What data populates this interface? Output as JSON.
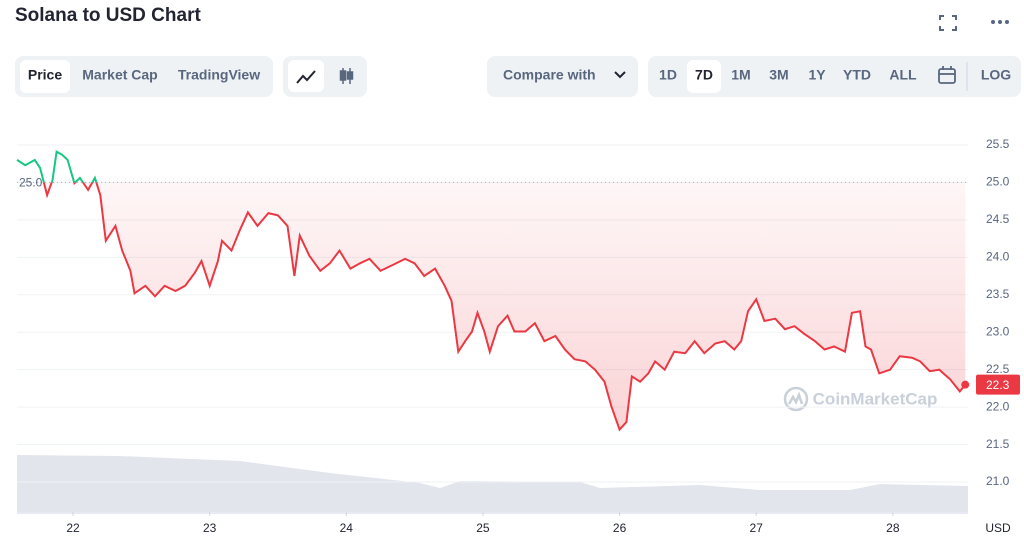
{
  "header": {
    "title": "Solana to USD Chart"
  },
  "toolbar": {
    "tabs": [
      "Price",
      "Market Cap",
      "TradingView"
    ],
    "active_tab": 0,
    "compare": "Compare with",
    "ranges": [
      "1D",
      "7D",
      "1M",
      "3M",
      "1Y",
      "YTD",
      "ALL"
    ],
    "active_range": 1,
    "log": "LOG"
  },
  "chart_data": {
    "type": "line",
    "x": [
      21.59,
      21.65,
      21.72,
      21.76,
      21.81,
      21.85,
      21.88,
      21.92,
      21.96,
      22.01,
      22.05,
      22.11,
      22.16,
      22.2,
      22.24,
      22.31,
      22.36,
      22.42,
      22.45,
      22.53,
      22.6,
      22.67,
      22.75,
      22.82,
      22.89,
      22.94,
      23.0,
      23.06,
      23.09,
      23.16,
      23.22,
      23.28,
      23.35,
      23.43,
      23.5,
      23.57,
      23.62,
      23.66,
      23.73,
      23.81,
      23.88,
      23.95,
      24.03,
      24.1,
      24.17,
      24.25,
      24.33,
      24.43,
      24.5,
      24.57,
      24.65,
      24.72,
      24.77,
      24.82,
      24.87,
      24.92,
      24.96,
      25.01,
      25.05,
      25.11,
      25.18,
      25.23,
      25.31,
      25.38,
      25.45,
      25.53,
      25.6,
      25.67,
      25.75,
      25.82,
      25.89,
      25.94,
      26.0,
      26.05,
      26.09,
      26.15,
      26.21,
      26.26,
      26.33,
      26.4,
      26.48,
      26.55,
      26.62,
      26.7,
      26.77,
      26.84,
      26.89,
      26.94,
      27.0,
      27.06,
      27.14,
      27.21,
      27.28,
      27.35,
      27.43,
      27.5,
      27.57,
      27.65,
      27.7,
      27.76,
      27.8,
      27.84,
      27.9,
      27.98,
      28.05,
      28.14,
      28.2,
      28.27,
      28.34,
      28.42,
      28.49,
      28.53
    ],
    "series": [
      {
        "color": "#ea3943",
        "values": [
          25.3,
          25.23,
          25.3,
          25.19,
          24.83,
          25.03,
          25.41,
          25.37,
          25.3,
          24.99,
          25.06,
          24.9,
          25.06,
          24.83,
          24.22,
          24.42,
          24.09,
          23.82,
          23.52,
          23.62,
          23.48,
          23.62,
          23.55,
          23.62,
          23.79,
          23.95,
          23.62,
          23.95,
          24.22,
          24.09,
          24.36,
          24.6,
          24.42,
          24.59,
          24.56,
          24.42,
          23.75,
          24.29,
          24.02,
          23.82,
          23.92,
          24.09,
          23.85,
          23.92,
          23.98,
          23.82,
          23.89,
          23.98,
          23.92,
          23.75,
          23.85,
          23.62,
          23.42,
          22.74,
          22.88,
          23.01,
          23.26,
          23.01,
          22.74,
          23.08,
          23.22,
          23.01,
          23.01,
          23.12,
          22.88,
          22.95,
          22.77,
          22.64,
          22.61,
          22.5,
          22.34,
          22.01,
          21.7,
          21.8,
          22.41,
          22.34,
          22.45,
          22.61,
          22.5,
          22.74,
          22.72,
          22.88,
          22.72,
          22.85,
          22.88,
          22.77,
          22.88,
          23.28,
          23.44,
          23.15,
          23.18,
          23.04,
          23.08,
          22.98,
          22.88,
          22.77,
          22.81,
          22.74,
          23.26,
          23.28,
          22.81,
          22.77,
          22.45,
          22.5,
          22.68,
          22.66,
          22.61,
          22.48,
          22.5,
          22.37,
          22.21,
          22.3
        ]
      }
    ],
    "up_color": "#16c784",
    "reference": {
      "value": 25,
      "label": "25.0"
    },
    "current": 22.3,
    "xlim": [
      21.59,
      28.55
    ],
    "ylim": [
      20.6,
      25.9
    ],
    "xticks": [
      22,
      23,
      24,
      25,
      26,
      27,
      28
    ],
    "yticks": [
      {
        "value": 21,
        "label": "21.0"
      },
      21.5,
      {
        "value": 22,
        "label": "22.0"
      },
      22.5,
      {
        "value": 23,
        "label": "23.0"
      },
      23.5,
      {
        "value": 24,
        "label": "24.0"
      },
      24.5,
      {
        "value": 25,
        "label": "25.0"
      },
      25.5
    ],
    "y_unit": "USD",
    "watermark": "CoinMarketCap",
    "grid": true
  }
}
